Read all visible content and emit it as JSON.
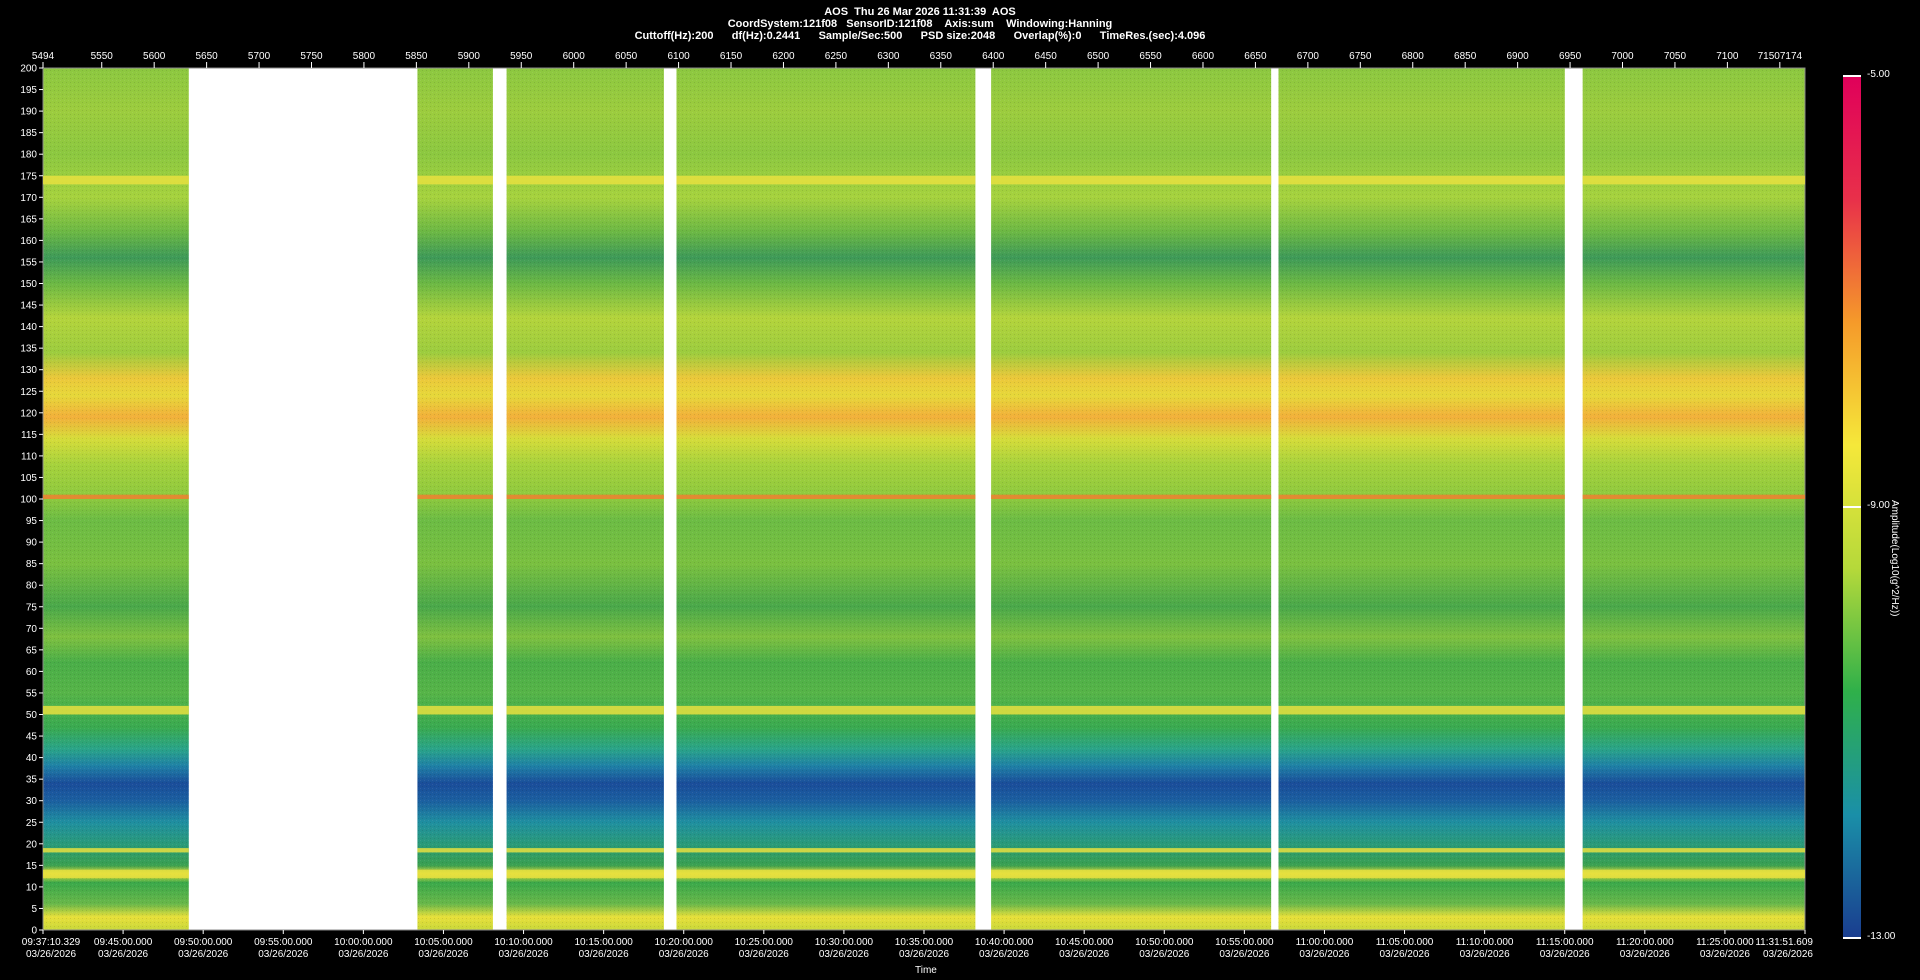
{
  "header": {
    "line1": "AOS  Thu 26 Mar 2026 11:31:39  AOS",
    "line2": "CoordSystem:121f08   SensorID:121f08    Axis:sum    Windowing:Hanning",
    "line3": "Cuttoff(Hz):200      df(Hz):0.2441      Sample/Sec:500      PSD size:2048      Overlap(%):0      TimeRes.(sec):4.096"
  },
  "chart_data": {
    "type": "heatmap",
    "title": "AOS  Thu 26 Mar 2026 11:31:39  AOS",
    "xlabel": "Time",
    "ylabel": "",
    "colorbar_label": "Amplitude(Log10(g^2/Hz))",
    "colorbar_range": [
      -13.0,
      -5.0
    ],
    "colorbar_ticks": [
      "-5.00",
      "-9.00",
      "-13.00"
    ],
    "colormap_stops": [
      "#1a3d8f",
      "#1a8fa8",
      "#2fb04a",
      "#b5d93a",
      "#f5e83a",
      "#f59a2a",
      "#e8304a",
      "#e0005a"
    ],
    "ylim": [
      0,
      200
    ],
    "y_ticks": [
      0,
      5,
      10,
      15,
      20,
      25,
      30,
      35,
      40,
      45,
      50,
      55,
      60,
      65,
      70,
      75,
      80,
      85,
      90,
      95,
      100,
      105,
      110,
      115,
      120,
      125,
      130,
      135,
      140,
      145,
      150,
      155,
      160,
      165,
      170,
      175,
      180,
      185,
      190,
      195,
      200
    ],
    "top_axis_range": [
      5494,
      7174
    ],
    "top_axis_ticks": [
      "5494",
      "5550",
      "5600",
      "5650",
      "5700",
      "5750",
      "5800",
      "5850",
      "5900",
      "5950",
      "6000",
      "6050",
      "6100",
      "6150",
      "6200",
      "6250",
      "6300",
      "6350",
      "6400",
      "6450",
      "6500",
      "6550",
      "6600",
      "6650",
      "6700",
      "6750",
      "6800",
      "6850",
      "6900",
      "6950",
      "7000",
      "7050",
      "7100",
      "71507174"
    ],
    "top_axis_tick_values": [
      5494,
      5550,
      5600,
      5650,
      5700,
      5750,
      5800,
      5850,
      5900,
      5950,
      6000,
      6050,
      6100,
      6150,
      6200,
      6250,
      6300,
      6350,
      6400,
      6450,
      6500,
      6550,
      6600,
      6650,
      6700,
      6750,
      6800,
      6850,
      6900,
      6950,
      7000,
      7050,
      7100,
      7150
    ],
    "x_ticks": [
      {
        "time": "09:37:10.329",
        "date": "03/26/2026"
      },
      {
        "time": "09:45:00.000",
        "date": "03/26/2026"
      },
      {
        "time": "09:50:00.000",
        "date": "03/26/2026"
      },
      {
        "time": "09:55:00.000",
        "date": "03/26/2026"
      },
      {
        "time": "10:00:00.000",
        "date": "03/26/2026"
      },
      {
        "time": "10:05:00.000",
        "date": "03/26/2026"
      },
      {
        "time": "10:10:00.000",
        "date": "03/26/2026"
      },
      {
        "time": "10:15:00.000",
        "date": "03/26/2026"
      },
      {
        "time": "10:20:00.000",
        "date": "03/26/2026"
      },
      {
        "time": "10:25:00.000",
        "date": "03/26/2026"
      },
      {
        "time": "10:30:00.000",
        "date": "03/26/2026"
      },
      {
        "time": "10:35:00.000",
        "date": "03/26/2026"
      },
      {
        "time": "10:40:00.000",
        "date": "03/26/2026"
      },
      {
        "time": "10:45:00.000",
        "date": "03/26/2026"
      },
      {
        "time": "10:50:00.000",
        "date": "03/26/2026"
      },
      {
        "time": "10:55:00.000",
        "date": "03/26/2026"
      },
      {
        "time": "11:00:00.000",
        "date": "03/26/2026"
      },
      {
        "time": "11:05:00.000",
        "date": "03/26/2026"
      },
      {
        "time": "11:10:00.000",
        "date": "03/26/2026"
      },
      {
        "time": "11:15:00.000",
        "date": "03/26/2026"
      },
      {
        "time": "11:20:00.000",
        "date": "03/26/2026"
      },
      {
        "time": "11:25:00.000",
        "date": "03/26/2026"
      },
      {
        "time": "11:31:51.609",
        "date": "03/26/2026"
      }
    ],
    "data_gaps_top_axis": [
      [
        5633,
        5851
      ],
      [
        5923,
        5936
      ],
      [
        6086,
        6098
      ],
      [
        6383,
        6398
      ],
      [
        6665,
        6672
      ],
      [
        6945,
        6962
      ]
    ],
    "frequency_bands": [
      {
        "freq_range": [
          0,
          5
        ],
        "level": "high"
      },
      {
        "freq_range": [
          12,
          14
        ],
        "level": "high"
      },
      {
        "freq_range": [
          18,
          19
        ],
        "level": "high"
      },
      {
        "freq_range": [
          25,
          40
        ],
        "level": "low"
      },
      {
        "freq_range": [
          50,
          52
        ],
        "level": "high"
      },
      {
        "freq_range": [
          100,
          101
        ],
        "level": "very_high"
      },
      {
        "freq_range": [
          115,
          130
        ],
        "level": "high"
      },
      {
        "freq_range": [
          150,
          160
        ],
        "level": "medium_low"
      },
      {
        "freq_range": [
          173,
          175
        ],
        "level": "high"
      }
    ]
  }
}
